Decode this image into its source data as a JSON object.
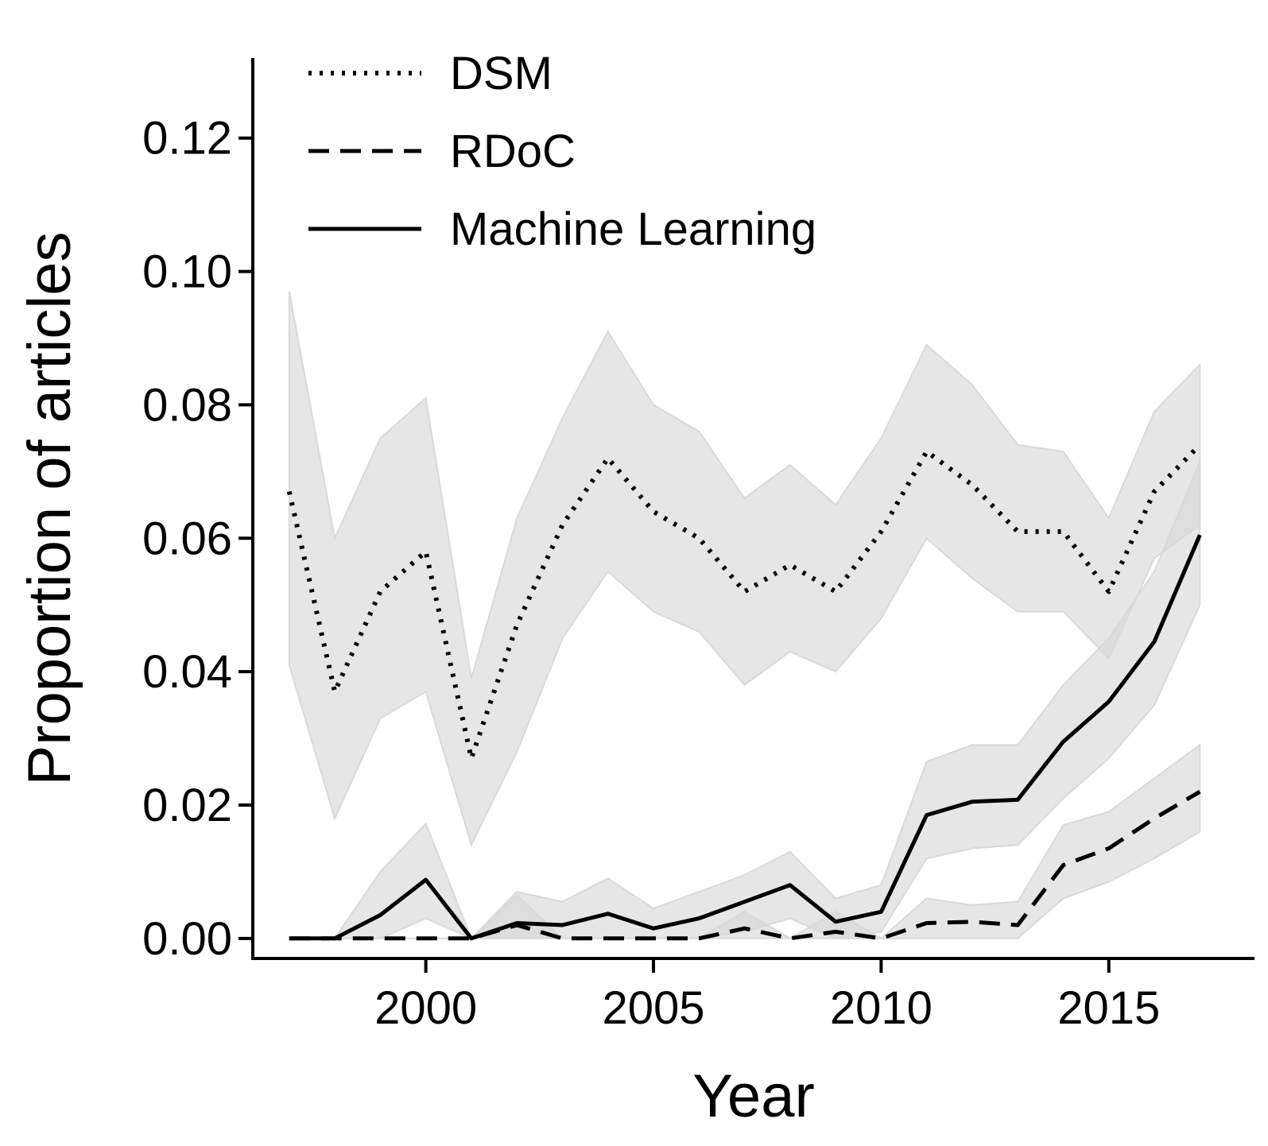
{
  "chart_data": {
    "type": "line",
    "xlabel": "Year",
    "ylabel": "Proportion of articles",
    "xlim": [
      1996.2,
      2018.2
    ],
    "ylim": [
      -0.003,
      0.132
    ],
    "xticks": [
      2000,
      2005,
      2010,
      2015
    ],
    "yticks": [
      0.0,
      0.02,
      0.04,
      0.06,
      0.08,
      0.1,
      0.12
    ],
    "ytick_labels": [
      "0.00",
      "0.02",
      "0.04",
      "0.06",
      "0.08",
      "0.10",
      "0.12"
    ],
    "grid": false,
    "legend_position": "top-left",
    "band_color": "#d9d9d9",
    "line_color": "#000000",
    "x": [
      1997,
      1998,
      1999,
      2000,
      2001,
      2002,
      2003,
      2004,
      2005,
      2006,
      2007,
      2008,
      2009,
      2010,
      2011,
      2012,
      2013,
      2014,
      2015,
      2016,
      2017
    ],
    "series": [
      {
        "name": "DSM",
        "style": "dotted",
        "values": [
          0.067,
          0.037,
          0.052,
          0.058,
          0.027,
          0.047,
          0.062,
          0.072,
          0.064,
          0.06,
          0.052,
          0.056,
          0.052,
          0.061,
          0.073,
          0.068,
          0.061,
          0.061,
          0.052,
          0.067,
          0.074
        ],
        "lower": [
          0.041,
          0.018,
          0.033,
          0.037,
          0.014,
          0.028,
          0.045,
          0.055,
          0.049,
          0.046,
          0.038,
          0.043,
          0.04,
          0.048,
          0.06,
          0.054,
          0.049,
          0.049,
          0.042,
          0.057,
          0.062
        ],
        "upper": [
          0.097,
          0.06,
          0.075,
          0.081,
          0.039,
          0.063,
          0.078,
          0.091,
          0.08,
          0.076,
          0.066,
          0.071,
          0.065,
          0.075,
          0.089,
          0.083,
          0.074,
          0.073,
          0.063,
          0.079,
          0.086
        ]
      },
      {
        "name": "RDoC",
        "style": "dashed",
        "values": [
          0.0,
          0.0,
          0.0,
          0.0,
          0.0,
          0.002,
          0.0,
          0.0,
          0.0,
          0.0,
          0.0015,
          0.0,
          0.001,
          0.0,
          0.0023,
          0.0025,
          0.002,
          0.011,
          0.0135,
          0.018,
          0.022
        ],
        "lower": [
          0.0,
          0.0,
          0.0,
          0.0,
          0.0,
          0.0,
          0.0,
          0.0,
          0.0,
          0.0,
          0.0,
          0.0,
          0.0,
          0.0,
          0.0,
          0.0,
          0.0,
          0.006,
          0.0085,
          0.012,
          0.016
        ],
        "upper": [
          0.0,
          0.0,
          0.0,
          0.0,
          0.0,
          0.0065,
          0.0,
          0.0,
          0.0,
          0.0,
          0.004,
          0.0,
          0.004,
          0.0,
          0.006,
          0.005,
          0.0055,
          0.017,
          0.019,
          0.024,
          0.029
        ]
      },
      {
        "name": "Machine Learning",
        "style": "solid",
        "values": [
          0.0,
          0.0,
          0.0035,
          0.0088,
          0.0,
          0.0023,
          0.002,
          0.0037,
          0.0015,
          0.003,
          0.0055,
          0.008,
          0.0025,
          0.004,
          0.0185,
          0.0205,
          0.0208,
          0.0295,
          0.0355,
          0.0445,
          0.0605
        ],
        "lower": [
          0.0,
          0.0,
          0.0,
          0.003,
          0.0,
          0.0,
          0.0,
          0.0,
          0.0,
          0.0,
          0.001,
          0.003,
          0.0,
          0.001,
          0.012,
          0.0135,
          0.014,
          0.021,
          0.027,
          0.035,
          0.05
        ],
        "upper": [
          0.0,
          0.0,
          0.01,
          0.0172,
          0.0,
          0.007,
          0.0055,
          0.009,
          0.0045,
          0.007,
          0.0095,
          0.013,
          0.006,
          0.008,
          0.0265,
          0.029,
          0.029,
          0.038,
          0.045,
          0.055,
          0.0715
        ]
      }
    ]
  }
}
